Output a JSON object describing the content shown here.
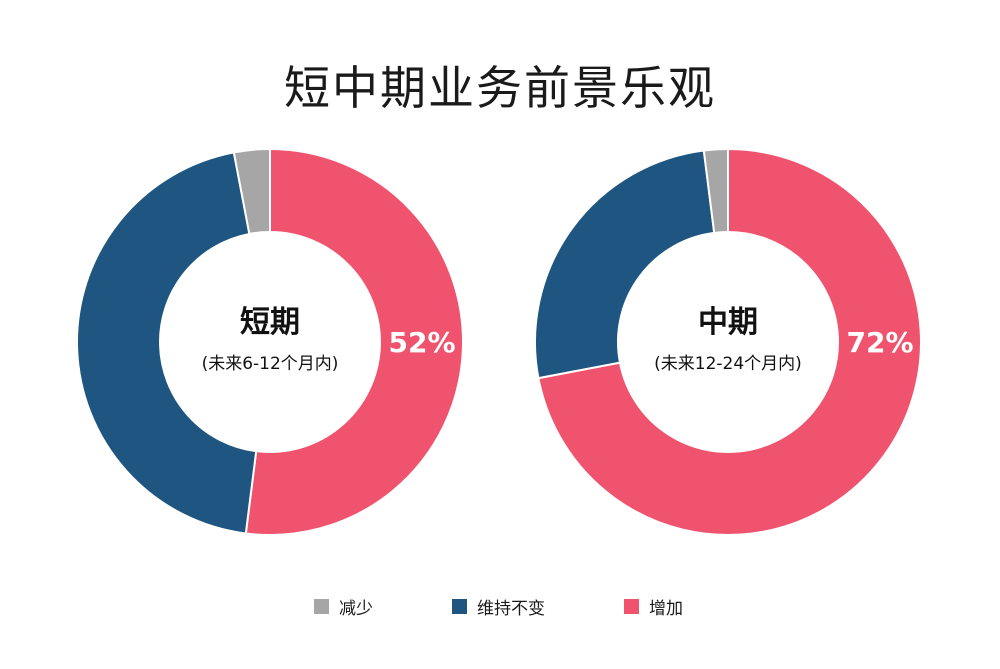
{
  "title": "短中期业务前景乐观",
  "colors": {
    "decrease": "#a6a6a6",
    "same": "#1e5581",
    "increase": "#f0536d"
  },
  "legend": [
    {
      "label": "减少",
      "color": "#a6a6a6"
    },
    {
      "label": "维持不变",
      "color": "#1e5581"
    },
    {
      "label": "增加",
      "color": "#f0536d"
    }
  ],
  "chart_data": [
    {
      "type": "pie",
      "donut": true,
      "center_title": "短期",
      "center_subtitle": "(未来6-12个月内)",
      "highlight_label": "52%",
      "slices": [
        {
          "name": "增加",
          "value": 52
        },
        {
          "name": "维持不变",
          "value": 45
        },
        {
          "name": "减少",
          "value": 3
        }
      ]
    },
    {
      "type": "pie",
      "donut": true,
      "center_title": "中期",
      "center_subtitle": "(未来12-24个月内)",
      "highlight_label": "72%",
      "slices": [
        {
          "name": "增加",
          "value": 72
        },
        {
          "name": "维持不变",
          "value": 26
        },
        {
          "name": "减少",
          "value": 2
        }
      ]
    }
  ]
}
